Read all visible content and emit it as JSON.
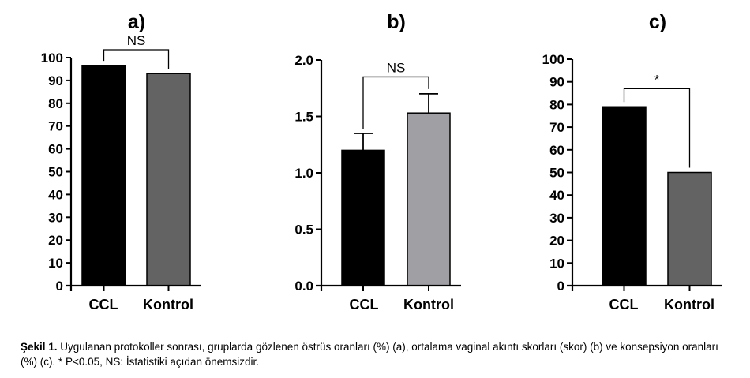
{
  "chart_data": [
    {
      "type": "bar",
      "title": "a)",
      "categories": [
        "CCL",
        "Kontrol"
      ],
      "values": [
        96.5,
        93
      ],
      "errors": [
        0,
        0
      ],
      "colors": [
        "#000000",
        "#636363"
      ],
      "ylim": [
        0,
        100
      ],
      "yticks": [
        0,
        10,
        20,
        30,
        40,
        50,
        60,
        70,
        80,
        90,
        100
      ],
      "ytick_labels": [
        "0",
        "10",
        "20",
        "30",
        "40",
        "50",
        "60",
        "70",
        "80",
        "90",
        "100"
      ],
      "significance": {
        "label": "NS",
        "y": 100
      }
    },
    {
      "type": "bar",
      "title": "b)",
      "categories": [
        "CCL",
        "Kontrol"
      ],
      "values": [
        1.2,
        1.53
      ],
      "errors": [
        0.15,
        0.17
      ],
      "colors": [
        "#000000",
        "#a0a0a4"
      ],
      "ylim": [
        0,
        2
      ],
      "yticks": [
        0,
        0.5,
        1.0,
        1.5,
        2.0
      ],
      "ytick_labels": [
        "0.0",
        "0.5",
        "1.0",
        "1.5",
        "2.0"
      ],
      "significance": {
        "label": "NS",
        "y": 1.85
      }
    },
    {
      "type": "bar",
      "title": "c)",
      "categories": [
        "CCL",
        "Kontrol"
      ],
      "values": [
        79,
        50
      ],
      "errors": [
        0,
        0
      ],
      "colors": [
        "#000000",
        "#636363"
      ],
      "ylim": [
        0,
        100
      ],
      "yticks": [
        0,
        10,
        20,
        30,
        40,
        50,
        60,
        70,
        80,
        90,
        100
      ],
      "ytick_labels": [
        "0",
        "10",
        "20",
        "30",
        "40",
        "50",
        "60",
        "70",
        "80",
        "90",
        "100"
      ],
      "significance": {
        "label": "*",
        "y": 87
      }
    }
  ],
  "caption": {
    "label": "Şekil 1.",
    "text": " Uygulanan protokoller sonrası, gruplarda gözlenen östrüs oranları (%) (a), ortalama vaginal akıntı skorları (skor) (b) ve konsepsiyon oranları (%) (c). * P<0.05, NS: İstatistiki açıdan önemsizdir."
  }
}
